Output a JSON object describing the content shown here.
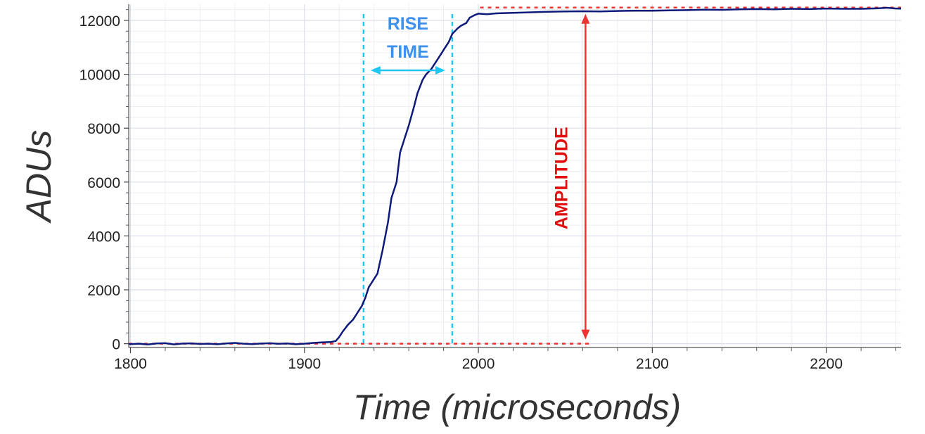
{
  "chart_data": {
    "type": "line",
    "title": "",
    "xlabel": "Time (microseconds)",
    "ylabel": "ADUs",
    "xlim": [
      1799,
      2243
    ],
    "ylim": [
      -140,
      12600
    ],
    "x_ticks": [
      1800,
      1900,
      2000,
      2100,
      2200
    ],
    "y_ticks": [
      0,
      2000,
      4000,
      6000,
      8000,
      10000,
      12000
    ],
    "x_minor_step": 20,
    "y_minor_step": 400,
    "grid": true,
    "colors": {
      "signal": "#0e1a7a",
      "rise_time": "#1fc8f0",
      "rise_time_text": "#3d8ff0",
      "amplitude": "#ee3333",
      "grid_major": "#dcdfe8",
      "grid_minor": "#eceef4"
    },
    "series": [
      {
        "values_x": [
          1799,
          1805,
          1810,
          1815,
          1820,
          1825,
          1830,
          1835,
          1840,
          1845,
          1850,
          1855,
          1860,
          1865,
          1870,
          1875,
          1880,
          1885,
          1890,
          1895,
          1900,
          1905,
          1910,
          1915,
          1918,
          1920,
          1922,
          1925,
          1928,
          1930,
          1933,
          1935,
          1937,
          1940,
          1942,
          1945,
          1948,
          1950,
          1953,
          1955,
          1957,
          1960,
          1963,
          1965,
          1968,
          1970,
          1973,
          1975,
          1978,
          1980,
          1983,
          1985,
          1988,
          1990,
          1993,
          1995,
          1998,
          2000,
          2005,
          2010,
          2020,
          2030,
          2040,
          2050,
          2060,
          2070,
          2080,
          2090,
          2100,
          2110,
          2120,
          2130,
          2140,
          2150,
          2160,
          2170,
          2180,
          2190,
          2200,
          2210,
          2220,
          2230,
          2235,
          2240,
          2243
        ],
        "values": [
          -20,
          0,
          -30,
          10,
          20,
          -25,
          5,
          15,
          -10,
          0,
          -20,
          10,
          30,
          0,
          -15,
          5,
          20,
          -5,
          10,
          -20,
          0,
          30,
          50,
          60,
          100,
          250,
          450,
          700,
          900,
          1100,
          1400,
          1700,
          2100,
          2400,
          2600,
          3500,
          4500,
          5400,
          6000,
          7100,
          7500,
          8100,
          8800,
          9300,
          9800,
          10000,
          10200,
          10400,
          10700,
          10900,
          11200,
          11500,
          11700,
          11800,
          11900,
          12100,
          12200,
          12250,
          12230,
          12260,
          12280,
          12300,
          12320,
          12330,
          12340,
          12330,
          12350,
          12360,
          12360,
          12370,
          12380,
          12400,
          12390,
          12410,
          12420,
          12410,
          12430,
          12420,
          12440,
          12430,
          12430,
          12450,
          12470,
          12440,
          12440
        ]
      }
    ],
    "annotations": {
      "rise_time_label_1": "RISE",
      "rise_time_label_2": "TIME",
      "rise_time_start": 1934,
      "rise_time_end": 1985,
      "amplitude_label": "AMPLITUDE",
      "amplitude_x": 2064,
      "baseline_y": 0,
      "top_y": 12450,
      "top_line_start": 2001
    }
  }
}
